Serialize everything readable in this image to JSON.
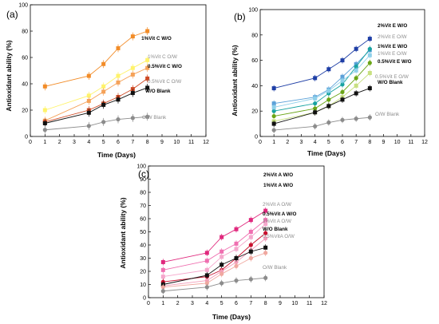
{
  "chart_data": [
    {
      "type": "line",
      "panel_label": "(a)",
      "xlabel": "Time (Days)",
      "ylabel": "Antioxidant ability (%)",
      "xlim": [
        0,
        12
      ],
      "ylim": [
        0,
        100
      ],
      "xticks": [
        0,
        1,
        2,
        3,
        4,
        5,
        6,
        7,
        8,
        9,
        10,
        11,
        12
      ],
      "yticks": [
        0,
        20,
        40,
        60,
        80,
        100
      ],
      "x": [
        1,
        4,
        5,
        6,
        7,
        8
      ],
      "series": [
        {
          "name": "1%Vit C W/O",
          "color": "#f28c28",
          "marker": "square",
          "bold": true,
          "values": [
            38,
            46,
            55,
            67,
            76,
            80
          ]
        },
        {
          "name": "1%Vit C O/W",
          "color": "#fff36b",
          "marker": "square",
          "bold": false,
          "values": [
            20,
            31,
            38,
            46,
            52,
            58
          ]
        },
        {
          "name": "0.5%Vit C W/O",
          "color": "#f5a259",
          "marker": "square",
          "bold": true,
          "values": [
            12,
            27,
            34,
            41,
            47,
            52
          ]
        },
        {
          "name": "0.5%Vit C O/W",
          "color": "#cf4a25",
          "marker": "square",
          "bold": false,
          "values": [
            11,
            20,
            25,
            30,
            36,
            44
          ]
        },
        {
          "name": "W/O Blank",
          "color": "#111111",
          "marker": "square",
          "bold": true,
          "values": [
            10,
            18,
            24,
            28,
            33,
            37
          ]
        },
        {
          "name": "O/W Blank",
          "color": "#8c8c8c",
          "marker": "circle",
          "bold": false,
          "values": [
            5,
            8,
            11,
            13,
            14,
            15
          ]
        }
      ]
    },
    {
      "type": "line",
      "panel_label": "(b)",
      "xlabel": "Time (Days)",
      "ylabel": "Antioxidant ability (%)",
      "xlim": [
        0,
        12
      ],
      "ylim": [
        0,
        100
      ],
      "xticks": [
        0,
        1,
        2,
        3,
        4,
        5,
        6,
        7,
        8,
        9,
        10,
        11,
        12
      ],
      "yticks": [
        0,
        20,
        40,
        60,
        80,
        100
      ],
      "x": [
        1,
        4,
        5,
        6,
        7,
        8
      ],
      "series": [
        {
          "name": "2%Vit E W/O",
          "color": "#1f3fa6",
          "marker": "square",
          "bold": true,
          "values": [
            38,
            46,
            53,
            60,
            69,
            77
          ]
        },
        {
          "name": "2%Vit E O/W",
          "color": "#5aa0d8",
          "marker": "square",
          "bold": false,
          "values": [
            26,
            31,
            37,
            47,
            57,
            68
          ]
        },
        {
          "name": "1%Vit E W/O",
          "color": "#17a2a0",
          "marker": "circle",
          "bold": true,
          "values": [
            20,
            26,
            34,
            41,
            55,
            69
          ]
        },
        {
          "name": "1%Vit E O/W",
          "color": "#8fd0ea",
          "marker": "square",
          "bold": false,
          "values": [
            23,
            30,
            36,
            44,
            52,
            64
          ]
        },
        {
          "name": "0.5%Vit E W/O",
          "color": "#6aa516",
          "marker": "circle",
          "bold": true,
          "values": [
            16,
            22,
            29,
            35,
            46,
            58
          ]
        },
        {
          "name": "0.5%Vit E O/W",
          "color": "#c8e080",
          "marker": "square",
          "bold": false,
          "values": [
            12,
            19,
            24,
            31,
            40,
            50
          ]
        },
        {
          "name": "W/O Blank",
          "color": "#111111",
          "marker": "square",
          "bold": true,
          "values": [
            10,
            19,
            24,
            29,
            34,
            38
          ]
        },
        {
          "name": "O/W Blank",
          "color": "#8c8c8c",
          "marker": "circle",
          "bold": false,
          "values": [
            5,
            8,
            11,
            13,
            14,
            15
          ]
        }
      ]
    },
    {
      "type": "line",
      "panel_label": "(c)",
      "xlabel": "Time (Days)",
      "ylabel": "Antioxidant ability (%)",
      "xlim": [
        0,
        12
      ],
      "ylim": [
        0,
        100
      ],
      "xticks": [
        0,
        1,
        2,
        3,
        4,
        5,
        6,
        7,
        8,
        9,
        10,
        11,
        12
      ],
      "yticks": [
        0,
        10,
        20,
        30,
        40,
        50,
        60,
        70,
        80,
        90,
        100
      ],
      "x": [
        1,
        4,
        5,
        6,
        7,
        8
      ],
      "series": [
        {
          "name": "2%Vit A W/O",
          "color": "#e0287d",
          "marker": "square",
          "bold": true,
          "values": [
            27,
            34,
            46,
            52,
            59,
            66
          ]
        },
        {
          "name": "1%Vit A W/O",
          "color": "#ef6fb0",
          "marker": "square",
          "bold": true,
          "values": [
            21,
            28,
            35,
            41,
            50,
            59
          ]
        },
        {
          "name": "2%Vit A O/W",
          "color": "#f5a7cc",
          "marker": "square",
          "bold": false,
          "values": [
            16,
            21,
            31,
            37,
            46,
            56
          ]
        },
        {
          "name": "0.5%Vit A W/O",
          "color": "#c8102e",
          "marker": "circle",
          "bold": true,
          "values": [
            12,
            16,
            21,
            30,
            40,
            49
          ]
        },
        {
          "name": "1%Vit A O/W",
          "color": "#f29db9",
          "marker": "circle",
          "bold": false,
          "values": [
            9,
            13,
            20,
            27,
            36,
            45
          ]
        },
        {
          "name": "W/O Blank",
          "color": "#111111",
          "marker": "square",
          "bold": true,
          "values": [
            10,
            17,
            25,
            30,
            35,
            38
          ]
        },
        {
          "name": "0.5%VitA O/W",
          "color": "#f0a8a0",
          "marker": "circle",
          "bold": false,
          "values": [
            8,
            11,
            18,
            24,
            30,
            34
          ]
        },
        {
          "name": "O/W Blank",
          "color": "#8c8c8c",
          "marker": "circle",
          "bold": false,
          "values": [
            5,
            8,
            11,
            13,
            14,
            15
          ]
        }
      ]
    }
  ]
}
